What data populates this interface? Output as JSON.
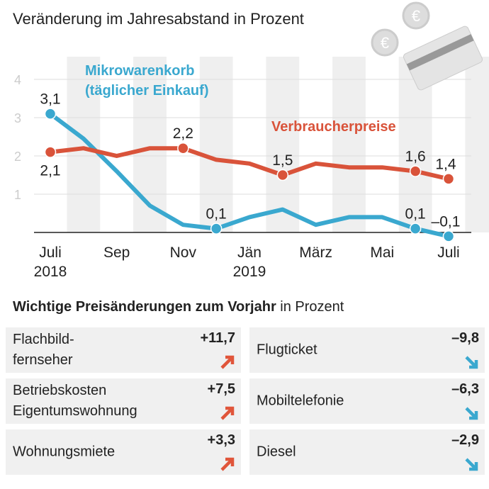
{
  "subtitle": "Veränderung im Jahresabstand in Prozent",
  "chart_data": {
    "type": "line",
    "title": "Veränderung im Jahresabstand in Prozent",
    "x": [
      "Jul 2018",
      "Aug 2018",
      "Sep 2018",
      "Okt 2018",
      "Nov 2018",
      "Dez 2018",
      "Jan 2019",
      "Feb 2019",
      "Mär 2019",
      "Apr 2019",
      "Mai 2019",
      "Jun 2019",
      "Jul 2019"
    ],
    "xticks": [
      {
        "i": 0,
        "label": "Juli",
        "sub": "2018"
      },
      {
        "i": 2,
        "label": "Sep",
        "sub": ""
      },
      {
        "i": 4,
        "label": "Nov",
        "sub": ""
      },
      {
        "i": 6,
        "label": "Jän",
        "sub": "2019"
      },
      {
        "i": 8,
        "label": "März",
        "sub": ""
      },
      {
        "i": 10,
        "label": "Mai",
        "sub": ""
      },
      {
        "i": 12,
        "label": "Juli",
        "sub": ""
      }
    ],
    "yticks": [
      1,
      2,
      3,
      4
    ],
    "ylim": [
      0,
      4.5
    ],
    "series": [
      {
        "name": "Mikrowarenkorb",
        "name2": "(täglicher Einkauf)",
        "color": "#3aa8cf",
        "values": [
          3.1,
          2.45,
          1.6,
          0.7,
          0.2,
          0.1,
          0.4,
          0.6,
          0.2,
          0.4,
          0.4,
          0.1,
          -0.1
        ],
        "labels": [
          {
            "i": 0,
            "text": "3,1",
            "pos": "above"
          },
          {
            "i": 5,
            "text": "0,1",
            "pos": "above"
          },
          {
            "i": 11,
            "text": "0,1",
            "pos": "above"
          },
          {
            "i": 12,
            "text": "–0,1",
            "pos": "above"
          }
        ]
      },
      {
        "name": "Verbraucherpreise",
        "color": "#d9533a",
        "values": [
          2.1,
          2.2,
          2.0,
          2.2,
          2.2,
          1.9,
          1.8,
          1.5,
          1.8,
          1.7,
          1.7,
          1.6,
          1.4
        ],
        "labels": [
          {
            "i": 0,
            "text": "2,1",
            "pos": "below"
          },
          {
            "i": 4,
            "text": "2,2",
            "pos": "above"
          },
          {
            "i": 7,
            "text": "1,5",
            "pos": "above"
          },
          {
            "i": 11,
            "text": "1,6",
            "pos": "above"
          },
          {
            "i": 12,
            "text": "1,4",
            "pos": "above"
          }
        ]
      }
    ]
  },
  "changes": {
    "title_bold": "Wichtige Preisänderungen zum Vorjahr",
    "title_rest": " in Prozent",
    "up_color": "#e0553a",
    "down_color": "#3aa8cf",
    "items": [
      {
        "label": "Flachbild-\nfernseher",
        "value": "+11,7",
        "dir": "up"
      },
      {
        "label": "Flugticket",
        "value": "–9,8",
        "dir": "down"
      },
      {
        "label": "Betriebskosten\nEigentumswohnung",
        "value": "+7,5",
        "dir": "up"
      },
      {
        "label": "Mobiltelefonie",
        "value": "–6,3",
        "dir": "down"
      },
      {
        "label": "Wohnungsmiete",
        "value": "+3,3",
        "dir": "up"
      },
      {
        "label": "Diesel",
        "value": "–2,9",
        "dir": "down"
      }
    ]
  }
}
